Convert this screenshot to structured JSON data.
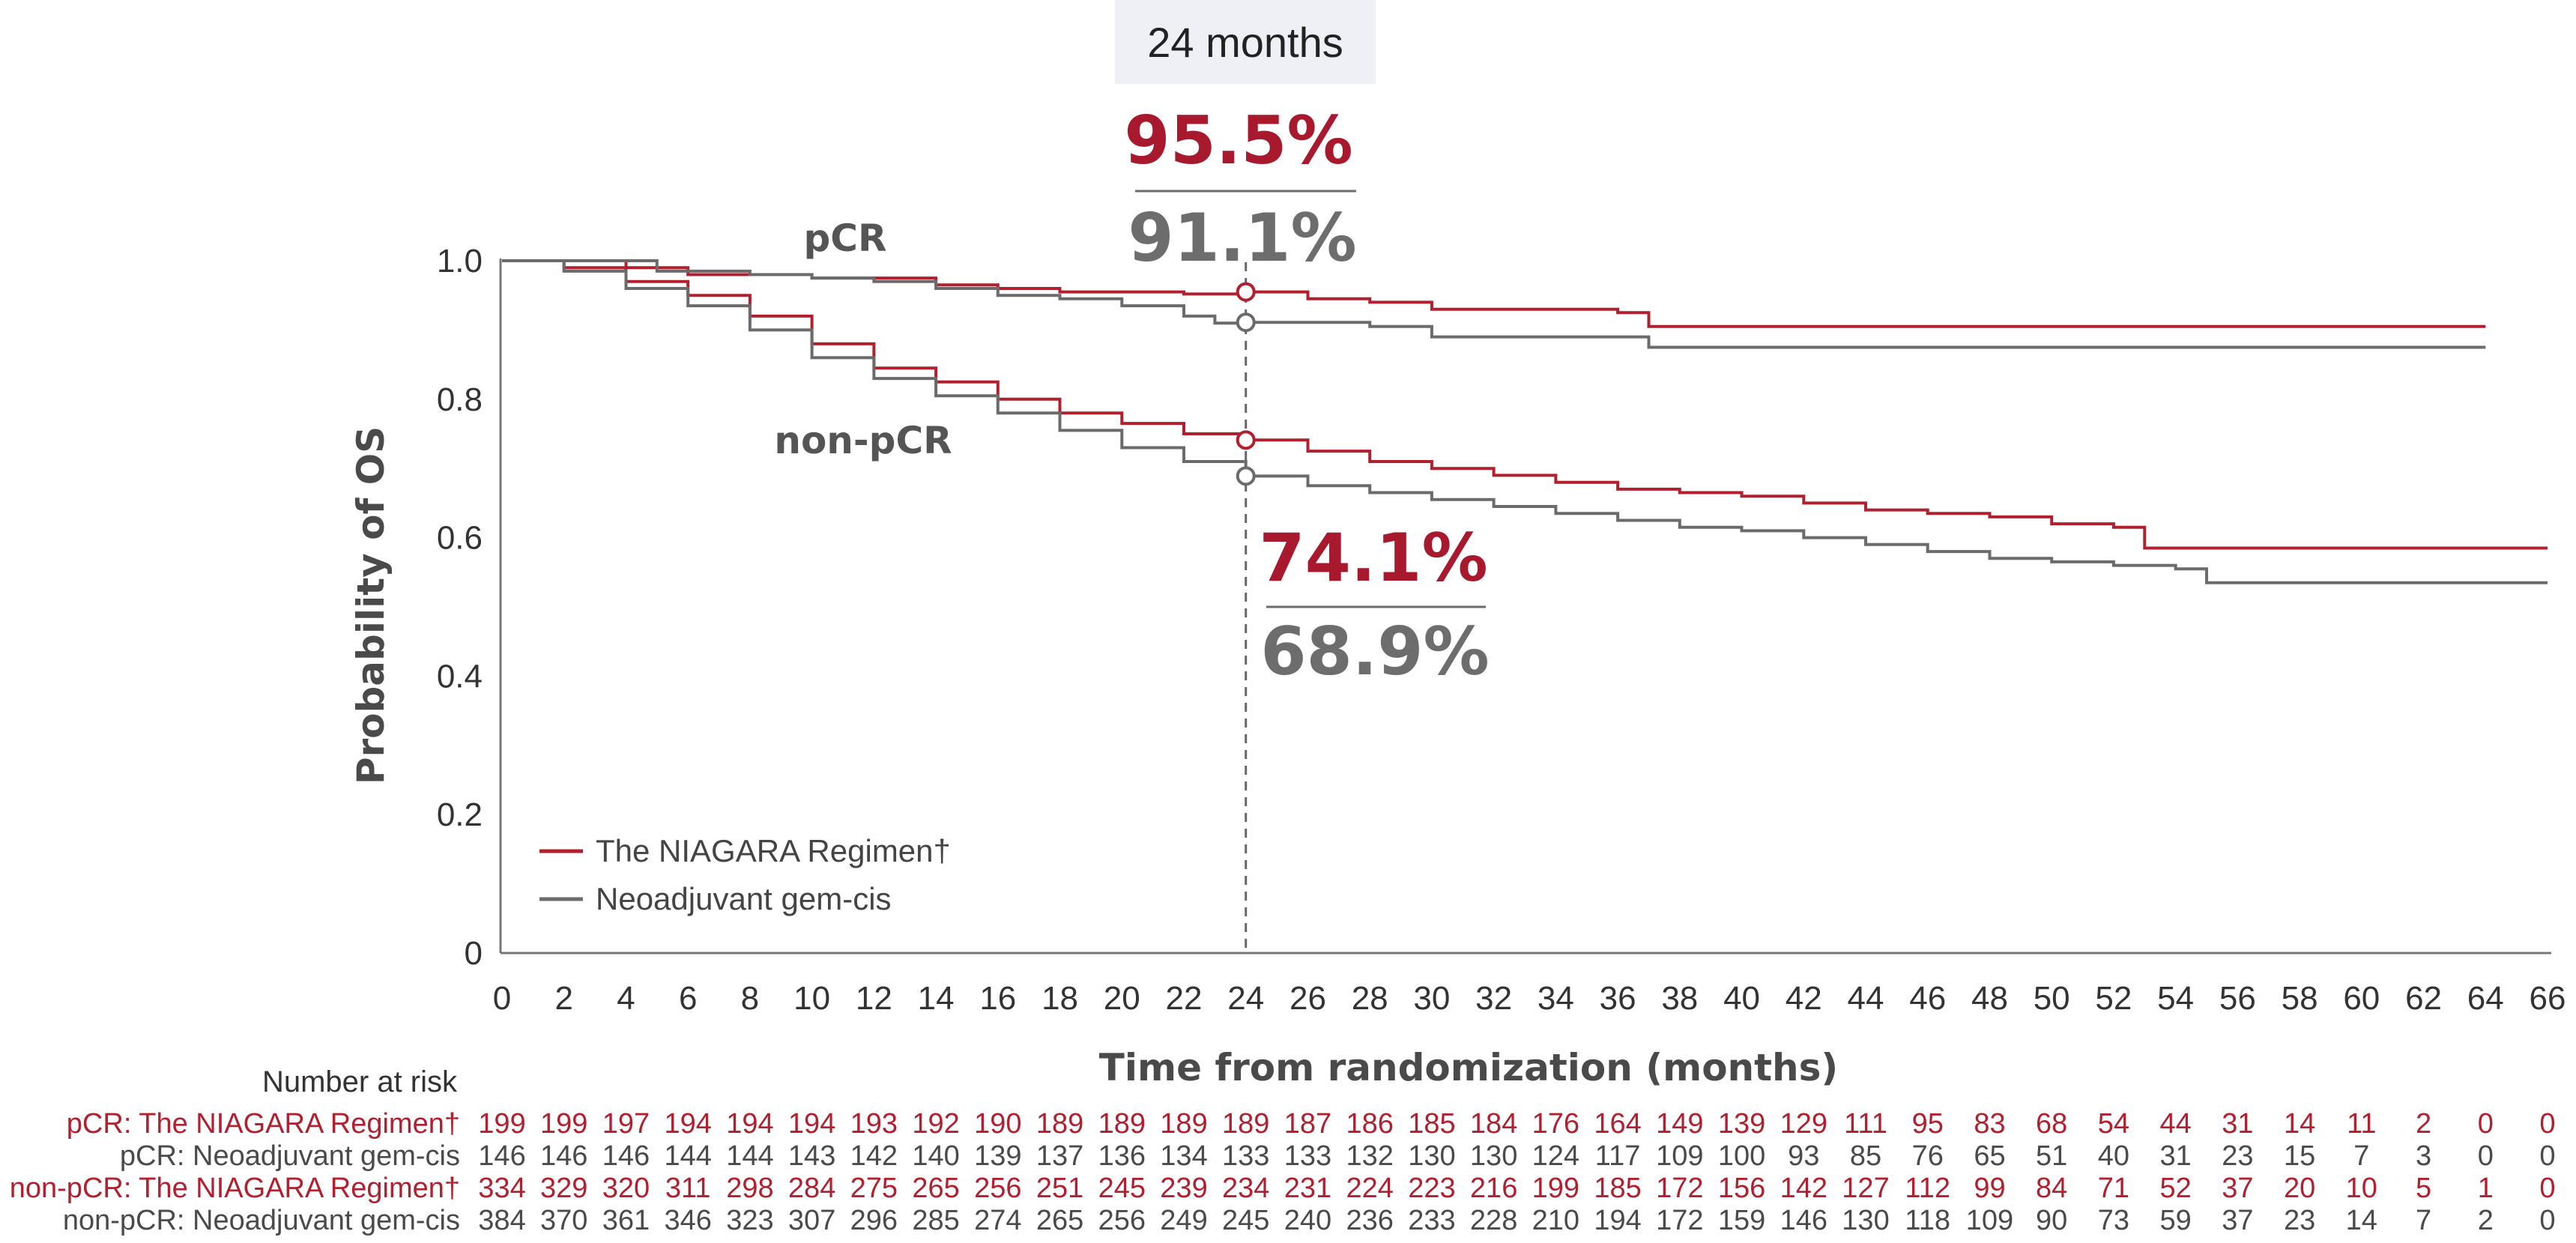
{
  "colors": {
    "niagara": "#b0202f",
    "gemcis": "#6b6b6b",
    "axis": "#666666",
    "box": "#eef0f6"
  },
  "chart_data": {
    "type": "line",
    "title": "",
    "xlabel": "Time from randomization (months)",
    "ylabel": "Probability of OS",
    "xlim": [
      0,
      66
    ],
    "ylim": [
      0,
      1.0
    ],
    "x_ticks": [
      0,
      2,
      4,
      6,
      8,
      10,
      12,
      14,
      16,
      18,
      20,
      22,
      24,
      26,
      28,
      30,
      32,
      34,
      36,
      38,
      40,
      42,
      44,
      46,
      48,
      50,
      52,
      54,
      56,
      58,
      60,
      62,
      64,
      66
    ],
    "y_ticks": [
      {
        "value": 0,
        "label": "0"
      },
      {
        "value": 0.2,
        "label": "0.2"
      },
      {
        "value": 0.4,
        "label": "0.4"
      },
      {
        "value": 0.6,
        "label": "0.6"
      },
      {
        "value": 0.8,
        "label": "0.8"
      },
      {
        "value": 1.0,
        "label": "1.0"
      }
    ],
    "series": [
      {
        "name": "pCR: The NIAGARA Regimen",
        "color_key": "niagara",
        "points": [
          [
            0,
            1.0
          ],
          [
            2,
            1.0
          ],
          [
            4,
            0.99
          ],
          [
            6,
            0.98
          ],
          [
            10,
            0.975
          ],
          [
            12,
            0.975
          ],
          [
            14,
            0.965
          ],
          [
            16,
            0.96
          ],
          [
            18,
            0.955
          ],
          [
            20,
            0.955
          ],
          [
            22,
            0.952
          ],
          [
            24,
            0.955
          ],
          [
            26,
            0.945
          ],
          [
            28,
            0.94
          ],
          [
            30,
            0.93
          ],
          [
            32,
            0.93
          ],
          [
            36,
            0.925
          ],
          [
            37,
            0.905
          ],
          [
            50,
            0.905
          ],
          [
            64,
            0.905
          ]
        ]
      },
      {
        "name": "pCR: Neoadjuvant gem-cis",
        "color_key": "gemcis",
        "points": [
          [
            0,
            1.0
          ],
          [
            2,
            1.0
          ],
          [
            4,
            1.0
          ],
          [
            5,
            0.985
          ],
          [
            8,
            0.98
          ],
          [
            10,
            0.975
          ],
          [
            12,
            0.97
          ],
          [
            14,
            0.96
          ],
          [
            16,
            0.95
          ],
          [
            18,
            0.945
          ],
          [
            20,
            0.935
          ],
          [
            22,
            0.92
          ],
          [
            23,
            0.91
          ],
          [
            24,
            0.911
          ],
          [
            28,
            0.905
          ],
          [
            30,
            0.89
          ],
          [
            34,
            0.89
          ],
          [
            37,
            0.875
          ],
          [
            50,
            0.875
          ],
          [
            64,
            0.875
          ]
        ]
      },
      {
        "name": "non-pCR: The NIAGARA Regimen",
        "color_key": "niagara",
        "points": [
          [
            0,
            1.0
          ],
          [
            2,
            0.99
          ],
          [
            4,
            0.97
          ],
          [
            6,
            0.95
          ],
          [
            8,
            0.92
          ],
          [
            10,
            0.88
          ],
          [
            12,
            0.845
          ],
          [
            14,
            0.825
          ],
          [
            16,
            0.8
          ],
          [
            18,
            0.78
          ],
          [
            20,
            0.765
          ],
          [
            22,
            0.75
          ],
          [
            24,
            0.741
          ],
          [
            26,
            0.725
          ],
          [
            28,
            0.71
          ],
          [
            30,
            0.7
          ],
          [
            32,
            0.69
          ],
          [
            34,
            0.68
          ],
          [
            36,
            0.67
          ],
          [
            38,
            0.665
          ],
          [
            40,
            0.66
          ],
          [
            42,
            0.65
          ],
          [
            44,
            0.64
          ],
          [
            46,
            0.635
          ],
          [
            48,
            0.63
          ],
          [
            50,
            0.62
          ],
          [
            52,
            0.615
          ],
          [
            53,
            0.585
          ],
          [
            56,
            0.585
          ],
          [
            66,
            0.585
          ]
        ]
      },
      {
        "name": "non-pCR: Neoadjuvant gem-cis",
        "color_key": "gemcis",
        "points": [
          [
            0,
            1.0
          ],
          [
            2,
            0.985
          ],
          [
            4,
            0.96
          ],
          [
            6,
            0.935
          ],
          [
            8,
            0.9
          ],
          [
            10,
            0.86
          ],
          [
            12,
            0.83
          ],
          [
            14,
            0.805
          ],
          [
            16,
            0.78
          ],
          [
            18,
            0.755
          ],
          [
            20,
            0.73
          ],
          [
            22,
            0.71
          ],
          [
            24,
            0.689
          ],
          [
            26,
            0.675
          ],
          [
            28,
            0.665
          ],
          [
            30,
            0.655
          ],
          [
            32,
            0.645
          ],
          [
            34,
            0.635
          ],
          [
            36,
            0.625
          ],
          [
            38,
            0.615
          ],
          [
            40,
            0.61
          ],
          [
            42,
            0.6
          ],
          [
            44,
            0.59
          ],
          [
            46,
            0.58
          ],
          [
            48,
            0.57
          ],
          [
            50,
            0.565
          ],
          [
            52,
            0.56
          ],
          [
            54,
            0.555
          ],
          [
            55,
            0.535
          ],
          [
            60,
            0.535
          ],
          [
            66,
            0.535
          ]
        ]
      }
    ],
    "markers": [
      {
        "x": 24,
        "y": 0.955,
        "color_key": "niagara"
      },
      {
        "x": 24,
        "y": 0.911,
        "color_key": "gemcis"
      },
      {
        "x": 24,
        "y": 0.741,
        "color_key": "niagara"
      },
      {
        "x": 24,
        "y": 0.689,
        "color_key": "gemcis"
      }
    ],
    "reference_x": 24,
    "annotations": {
      "timepoint": "24 months",
      "pcr_label": "pCR",
      "nonpcr_label": "non-pCR",
      "pcr_niagara": "95.5%",
      "pcr_gemcis": "91.1%",
      "nonpcr_niagara": "74.1%",
      "nonpcr_gemcis": "68.9%"
    },
    "legend": [
      {
        "label": "The NIAGARA Regimen†",
        "color_key": "niagara"
      },
      {
        "label": "Neoadjuvant gem-cis",
        "color_key": "gemcis"
      }
    ]
  },
  "risk_table": {
    "title": "Number at risk",
    "rows": [
      {
        "label": "pCR: The NIAGARA Regimen†",
        "color_key": "niagara",
        "values": [
          "199",
          "199",
          "197",
          "194",
          "194",
          "194",
          "193",
          "192",
          "190",
          "189",
          "189",
          "189",
          "189",
          "187",
          "186",
          "185",
          "184",
          "176",
          "164",
          "149",
          "139",
          "129",
          "111",
          "95",
          "83",
          "68",
          "54",
          "44",
          "31",
          "14",
          "11",
          "2",
          "0",
          "0"
        ]
      },
      {
        "label": "pCR: Neoadjuvant gem-cis",
        "color_key": "gemcis",
        "values": [
          "146",
          "146",
          "146",
          "144",
          "144",
          "143",
          "142",
          "140",
          "139",
          "137",
          "136",
          "134",
          "133",
          "133",
          "132",
          "130",
          "130",
          "124",
          "117",
          "109",
          "100",
          "93",
          "85",
          "76",
          "65",
          "51",
          "40",
          "31",
          "23",
          "15",
          "7",
          "3",
          "0",
          "0"
        ]
      },
      {
        "label": "non-pCR: The NIAGARA Regimen†",
        "color_key": "niagara",
        "values": [
          "334",
          "329",
          "320",
          "311",
          "298",
          "284",
          "275",
          "265",
          "256",
          "251",
          "245",
          "239",
          "234",
          "231",
          "224",
          "223",
          "216",
          "199",
          "185",
          "172",
          "156",
          "142",
          "127",
          "112",
          "99",
          "84",
          "71",
          "52",
          "37",
          "20",
          "10",
          "5",
          "1",
          "0"
        ]
      },
      {
        "label": "non-pCR: Neoadjuvant gem-cis",
        "color_key": "gemcis",
        "values": [
          "384",
          "370",
          "361",
          "346",
          "323",
          "307",
          "296",
          "285",
          "274",
          "265",
          "256",
          "249",
          "245",
          "240",
          "236",
          "233",
          "228",
          "210",
          "194",
          "172",
          "159",
          "146",
          "130",
          "118",
          "109",
          "90",
          "73",
          "59",
          "37",
          "23",
          "14",
          "7",
          "2",
          "0"
        ]
      }
    ]
  }
}
